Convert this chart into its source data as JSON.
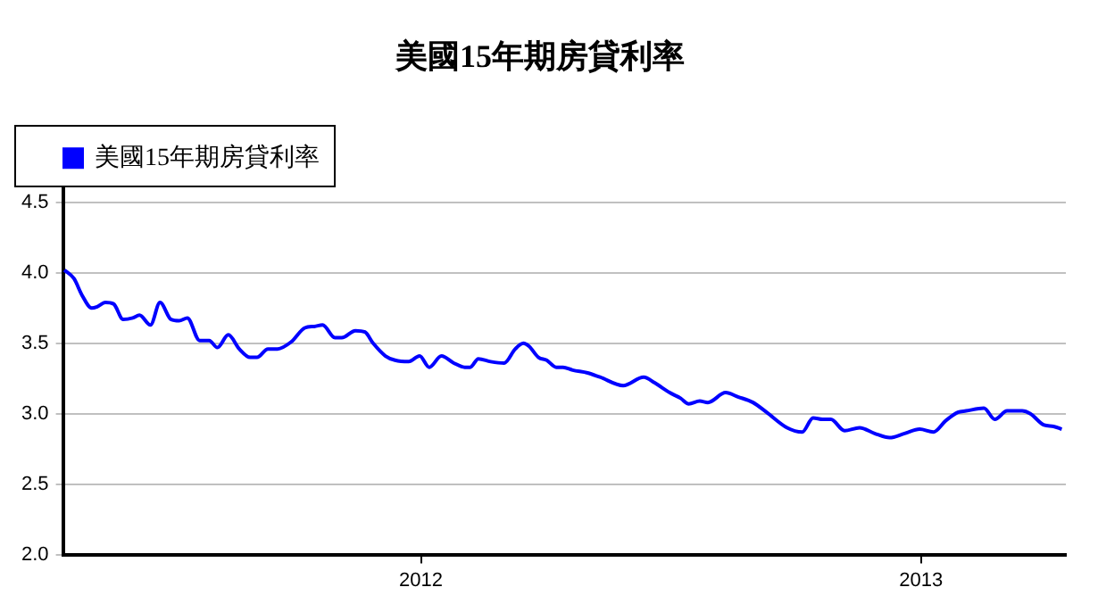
{
  "chart_data": {
    "type": "line",
    "title": "美國15年期房貸利率",
    "x": [
      "2011-04-15",
      "2011-04-22",
      "2011-04-28",
      "2011-05-05",
      "2011-05-09",
      "2011-05-15",
      "2011-05-21",
      "2011-05-28",
      "2011-06-04",
      "2011-06-09",
      "2011-06-17",
      "2011-06-24",
      "2011-07-02",
      "2011-07-08",
      "2011-07-14",
      "2011-07-23",
      "2011-07-30",
      "2011-08-05",
      "2011-08-13",
      "2011-08-21",
      "2011-08-29",
      "2011-09-03",
      "2011-09-11",
      "2011-09-18",
      "2011-09-28",
      "2011-10-08",
      "2011-10-15",
      "2011-10-21",
      "2011-10-30",
      "2011-11-04",
      "2011-11-14",
      "2011-11-21",
      "2011-11-27",
      "2011-12-06",
      "2011-12-13",
      "2011-12-23",
      "2011-12-31",
      "2012-01-07",
      "2012-01-16",
      "2012-01-25",
      "2012-02-02",
      "2012-02-06",
      "2012-02-12",
      "2012-02-21",
      "2012-03-02",
      "2012-03-10",
      "2012-03-16",
      "2012-03-20",
      "2012-03-27",
      "2012-04-02",
      "2012-04-09",
      "2012-04-14",
      "2012-04-21",
      "2012-05-02",
      "2012-05-11",
      "2012-05-28",
      "2012-06-12",
      "2012-06-20",
      "2012-07-01",
      "2012-07-09",
      "2012-07-15",
      "2012-07-23",
      "2012-07-29",
      "2012-08-11",
      "2012-08-20",
      "2012-08-31",
      "2012-09-10",
      "2012-09-25",
      "2012-10-06",
      "2012-10-14",
      "2012-10-21",
      "2012-10-27",
      "2012-11-06",
      "2012-11-17",
      "2012-11-28",
      "2012-12-09",
      "2012-12-20",
      "2012-12-31",
      "2013-01-10",
      "2013-01-19",
      "2013-01-28",
      "2013-02-03",
      "2013-02-16",
      "2013-02-24",
      "2013-03-05",
      "2013-03-16",
      "2013-03-22",
      "2013-04-01",
      "2013-04-08",
      "2013-04-14"
    ],
    "series": [
      {
        "name": "美國15年期房貸利率",
        "color": "#0000ff",
        "values": [
          4.02,
          3.96,
          3.84,
          3.75,
          3.76,
          3.79,
          3.78,
          3.67,
          3.68,
          3.7,
          3.63,
          3.79,
          3.67,
          3.66,
          3.68,
          3.52,
          3.52,
          3.47,
          3.56,
          3.46,
          3.4,
          3.4,
          3.46,
          3.46,
          3.51,
          3.61,
          3.62,
          3.63,
          3.54,
          3.54,
          3.59,
          3.58,
          3.5,
          3.41,
          3.38,
          3.37,
          3.41,
          3.33,
          3.41,
          3.36,
          3.33,
          3.33,
          3.39,
          3.37,
          3.36,
          3.46,
          3.5,
          3.48,
          3.4,
          3.38,
          3.33,
          3.33,
          3.31,
          3.29,
          3.26,
          3.2,
          3.26,
          3.22,
          3.15,
          3.11,
          3.07,
          3.09,
          3.08,
          3.15,
          3.12,
          3.08,
          3.01,
          2.9,
          2.87,
          2.97,
          2.96,
          2.96,
          2.88,
          2.9,
          2.86,
          2.83,
          2.86,
          2.89,
          2.87,
          2.95,
          3.01,
          3.02,
          3.04,
          2.96,
          3.02,
          3.02,
          3.0,
          2.92,
          2.91,
          2.89
        ]
      }
    ],
    "xlim": [
      "2011-04-14",
      "2013-04-17"
    ],
    "xticks": [
      {
        "value": "2012-01-01",
        "label": "2012"
      },
      {
        "value": "2013-01-01",
        "label": "2013"
      }
    ],
    "ylim": [
      2.0,
      4.6
    ],
    "yticks": [
      {
        "value": 2.0,
        "label": "2.0"
      },
      {
        "value": 2.5,
        "label": "2.5"
      },
      {
        "value": 3.0,
        "label": "3.0"
      },
      {
        "value": 3.5,
        "label": "3.5"
      },
      {
        "value": 4.0,
        "label": "4.0"
      },
      {
        "value": 4.5,
        "label": "4.5"
      }
    ],
    "grid": "y",
    "legend": "top left",
    "marker": "none",
    "line_style": "solid"
  }
}
